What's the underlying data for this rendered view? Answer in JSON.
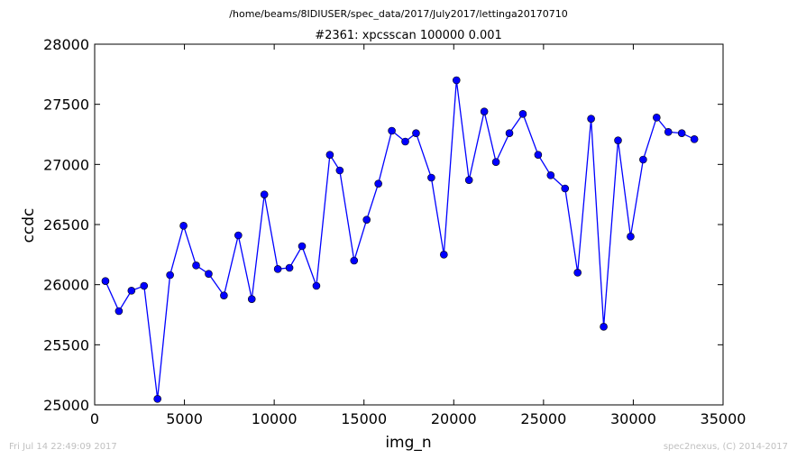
{
  "chart_data": {
    "type": "line",
    "suptitle": "/home/beams/8IDIUSER/spec_data/2017/July2017/lettinga20170710",
    "title": "#2361: xpcsscan 100000 0.001",
    "xlabel": "img_n",
    "ylabel": "ccdc",
    "xlim": [
      0,
      35000
    ],
    "ylim": [
      25000,
      28000
    ],
    "xticks": [
      0,
      5000,
      10000,
      15000,
      20000,
      25000,
      30000,
      35000
    ],
    "yticks": [
      25000,
      25500,
      26000,
      26500,
      27000,
      27500,
      28000
    ],
    "grid": false,
    "series": [
      {
        "color": "#0000ff",
        "x": [
          600,
          1350,
          2050,
          2750,
          3500,
          4200,
          4950,
          5650,
          6350,
          7200,
          8000,
          8750,
          9450,
          10200,
          10850,
          11550,
          12350,
          13100,
          13650,
          14450,
          15150,
          15800,
          16550,
          17300,
          17900,
          18750,
          19450,
          20150,
          20850,
          21700,
          22350,
          23100,
          23850,
          24700,
          25400,
          26200,
          26900,
          27650,
          28350,
          29150,
          29850,
          30550,
          31300,
          31950,
          32700,
          33400
        ],
        "y": [
          26030,
          25780,
          25950,
          25990,
          25050,
          26080,
          26490,
          26160,
          26090,
          25910,
          26410,
          25880,
          26750,
          26130,
          26140,
          26320,
          25990,
          27080,
          26950,
          26200,
          26540,
          26840,
          27280,
          27190,
          27260,
          26890,
          26250,
          27700,
          26870,
          27440,
          27020,
          27260,
          27420,
          27080,
          26910,
          26800,
          26100,
          27380,
          25650,
          27200,
          26400,
          27040,
          27390,
          27270,
          27260,
          27210
        ]
      }
    ]
  },
  "footer": {
    "left": "Fri Jul 14 22:49:09 2017",
    "right": "spec2nexus, (C) 2014-2017"
  }
}
